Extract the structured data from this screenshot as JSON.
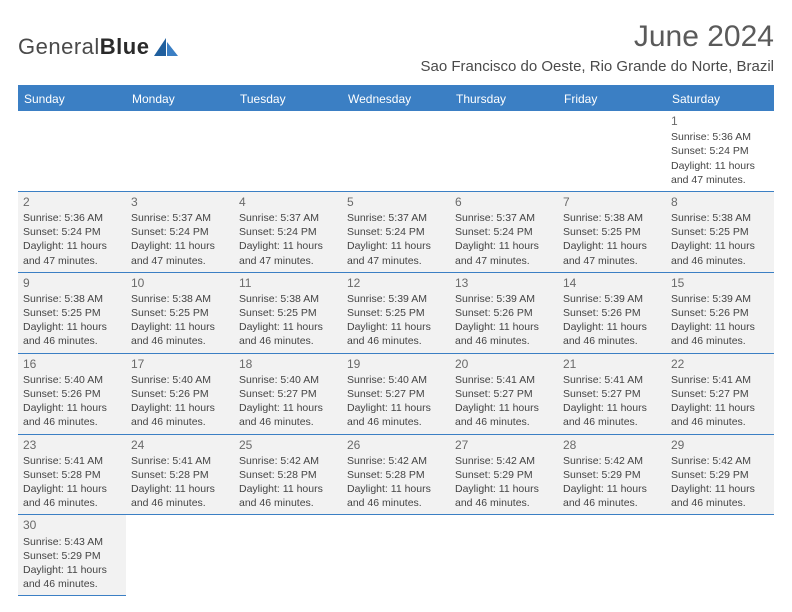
{
  "logo": {
    "text1": "General",
    "text2": "Blue"
  },
  "header": {
    "month_title": "June 2024",
    "location": "Sao Francisco do Oeste, Rio Grande do Norte, Brazil"
  },
  "colors": {
    "header_bg": "#3b7fc4",
    "border": "#3b7fc4",
    "shaded": "#f2f2f2"
  },
  "weekdays": [
    "Sunday",
    "Monday",
    "Tuesday",
    "Wednesday",
    "Thursday",
    "Friday",
    "Saturday"
  ],
  "days": [
    {
      "n": "1",
      "sr": "5:36 AM",
      "ss": "5:24 PM",
      "dl": "11 hours and 47 minutes."
    },
    {
      "n": "2",
      "sr": "5:36 AM",
      "ss": "5:24 PM",
      "dl": "11 hours and 47 minutes."
    },
    {
      "n": "3",
      "sr": "5:37 AM",
      "ss": "5:24 PM",
      "dl": "11 hours and 47 minutes."
    },
    {
      "n": "4",
      "sr": "5:37 AM",
      "ss": "5:24 PM",
      "dl": "11 hours and 47 minutes."
    },
    {
      "n": "5",
      "sr": "5:37 AM",
      "ss": "5:24 PM",
      "dl": "11 hours and 47 minutes."
    },
    {
      "n": "6",
      "sr": "5:37 AM",
      "ss": "5:24 PM",
      "dl": "11 hours and 47 minutes."
    },
    {
      "n": "7",
      "sr": "5:38 AM",
      "ss": "5:25 PM",
      "dl": "11 hours and 47 minutes."
    },
    {
      "n": "8",
      "sr": "5:38 AM",
      "ss": "5:25 PM",
      "dl": "11 hours and 46 minutes."
    },
    {
      "n": "9",
      "sr": "5:38 AM",
      "ss": "5:25 PM",
      "dl": "11 hours and 46 minutes."
    },
    {
      "n": "10",
      "sr": "5:38 AM",
      "ss": "5:25 PM",
      "dl": "11 hours and 46 minutes."
    },
    {
      "n": "11",
      "sr": "5:38 AM",
      "ss": "5:25 PM",
      "dl": "11 hours and 46 minutes."
    },
    {
      "n": "12",
      "sr": "5:39 AM",
      "ss": "5:25 PM",
      "dl": "11 hours and 46 minutes."
    },
    {
      "n": "13",
      "sr": "5:39 AM",
      "ss": "5:26 PM",
      "dl": "11 hours and 46 minutes."
    },
    {
      "n": "14",
      "sr": "5:39 AM",
      "ss": "5:26 PM",
      "dl": "11 hours and 46 minutes."
    },
    {
      "n": "15",
      "sr": "5:39 AM",
      "ss": "5:26 PM",
      "dl": "11 hours and 46 minutes."
    },
    {
      "n": "16",
      "sr": "5:40 AM",
      "ss": "5:26 PM",
      "dl": "11 hours and 46 minutes."
    },
    {
      "n": "17",
      "sr": "5:40 AM",
      "ss": "5:26 PM",
      "dl": "11 hours and 46 minutes."
    },
    {
      "n": "18",
      "sr": "5:40 AM",
      "ss": "5:27 PM",
      "dl": "11 hours and 46 minutes."
    },
    {
      "n": "19",
      "sr": "5:40 AM",
      "ss": "5:27 PM",
      "dl": "11 hours and 46 minutes."
    },
    {
      "n": "20",
      "sr": "5:41 AM",
      "ss": "5:27 PM",
      "dl": "11 hours and 46 minutes."
    },
    {
      "n": "21",
      "sr": "5:41 AM",
      "ss": "5:27 PM",
      "dl": "11 hours and 46 minutes."
    },
    {
      "n": "22",
      "sr": "5:41 AM",
      "ss": "5:27 PM",
      "dl": "11 hours and 46 minutes."
    },
    {
      "n": "23",
      "sr": "5:41 AM",
      "ss": "5:28 PM",
      "dl": "11 hours and 46 minutes."
    },
    {
      "n": "24",
      "sr": "5:41 AM",
      "ss": "5:28 PM",
      "dl": "11 hours and 46 minutes."
    },
    {
      "n": "25",
      "sr": "5:42 AM",
      "ss": "5:28 PM",
      "dl": "11 hours and 46 minutes."
    },
    {
      "n": "26",
      "sr": "5:42 AM",
      "ss": "5:28 PM",
      "dl": "11 hours and 46 minutes."
    },
    {
      "n": "27",
      "sr": "5:42 AM",
      "ss": "5:29 PM",
      "dl": "11 hours and 46 minutes."
    },
    {
      "n": "28",
      "sr": "5:42 AM",
      "ss": "5:29 PM",
      "dl": "11 hours and 46 minutes."
    },
    {
      "n": "29",
      "sr": "5:42 AM",
      "ss": "5:29 PM",
      "dl": "11 hours and 46 minutes."
    },
    {
      "n": "30",
      "sr": "5:43 AM",
      "ss": "5:29 PM",
      "dl": "11 hours and 46 minutes."
    }
  ],
  "labels": {
    "sunrise": "Sunrise:",
    "sunset": "Sunset:",
    "daylight": "Daylight:"
  },
  "layout": {
    "first_day_column": 6,
    "weeks": 6,
    "shaded_rows_start_at_week": 1
  }
}
